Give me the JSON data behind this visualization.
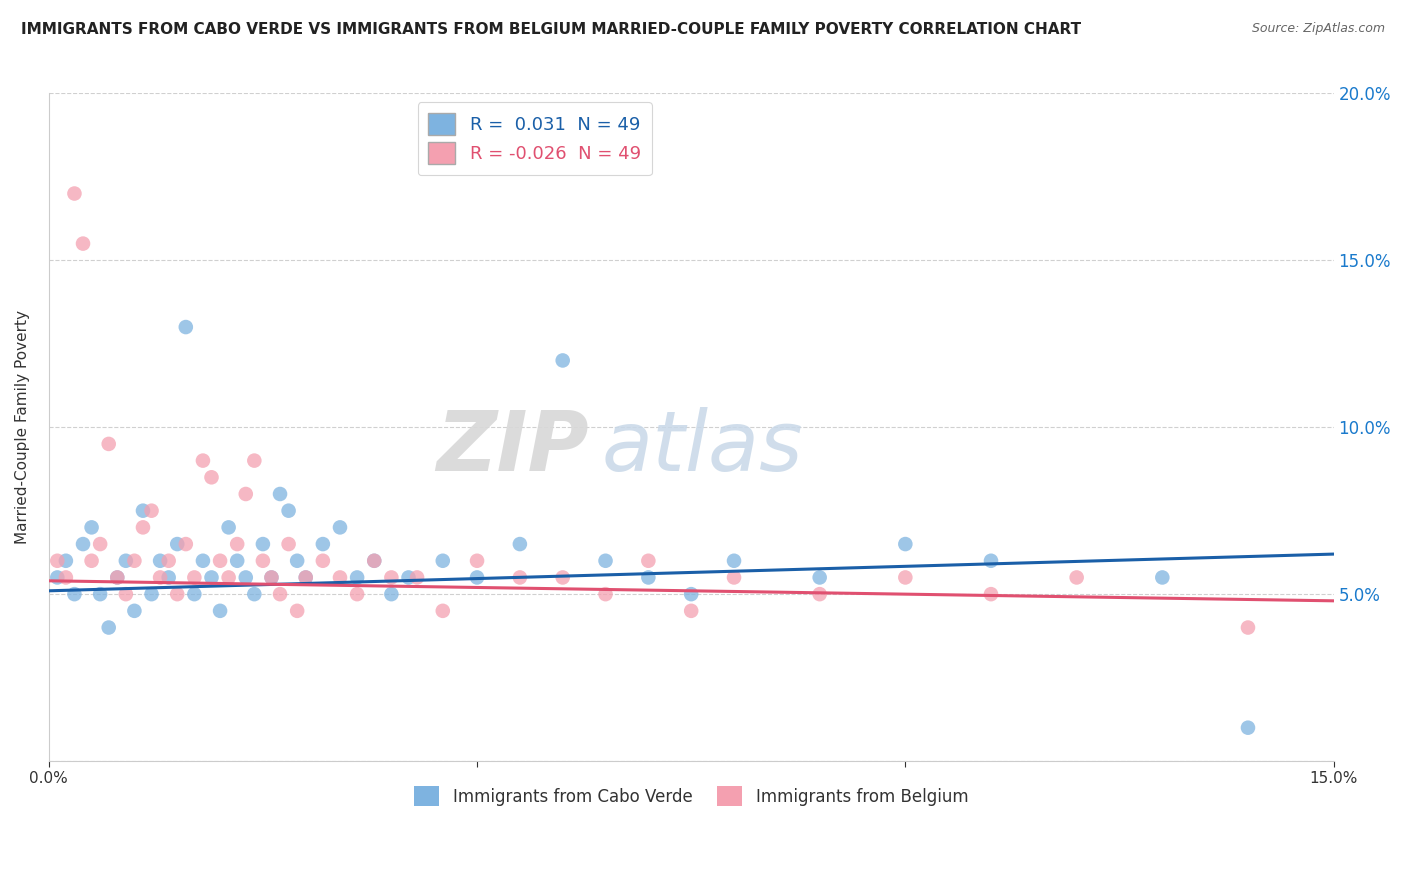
{
  "title": "IMMIGRANTS FROM CABO VERDE VS IMMIGRANTS FROM BELGIUM MARRIED-COUPLE FAMILY POVERTY CORRELATION CHART",
  "source": "Source: ZipAtlas.com",
  "ylabel": "Married-Couple Family Poverty",
  "x_min": 0.0,
  "x_max": 0.15,
  "y_min": 0.0,
  "y_max": 0.2,
  "r_cabo_verde": 0.031,
  "n_cabo_verde": 49,
  "r_belgium": -0.026,
  "n_belgium": 49,
  "color_cabo_verde": "#7eb3e0",
  "color_belgium": "#f4a0b0",
  "line_color_cabo_verde": "#1a5fa8",
  "line_color_belgium": "#e05070",
  "cabo_verde_x": [
    0.001,
    0.002,
    0.003,
    0.004,
    0.005,
    0.006,
    0.007,
    0.008,
    0.009,
    0.01,
    0.011,
    0.012,
    0.013,
    0.014,
    0.015,
    0.016,
    0.017,
    0.018,
    0.019,
    0.02,
    0.021,
    0.022,
    0.023,
    0.024,
    0.025,
    0.026,
    0.027,
    0.028,
    0.029,
    0.03,
    0.032,
    0.034,
    0.036,
    0.038,
    0.04,
    0.042,
    0.046,
    0.05,
    0.055,
    0.06,
    0.065,
    0.07,
    0.075,
    0.08,
    0.09,
    0.1,
    0.11,
    0.13,
    0.14
  ],
  "cabo_verde_y": [
    0.055,
    0.06,
    0.05,
    0.065,
    0.07,
    0.05,
    0.04,
    0.055,
    0.06,
    0.045,
    0.075,
    0.05,
    0.06,
    0.055,
    0.065,
    0.13,
    0.05,
    0.06,
    0.055,
    0.045,
    0.07,
    0.06,
    0.055,
    0.05,
    0.065,
    0.055,
    0.08,
    0.075,
    0.06,
    0.055,
    0.065,
    0.07,
    0.055,
    0.06,
    0.05,
    0.055,
    0.06,
    0.055,
    0.065,
    0.12,
    0.06,
    0.055,
    0.05,
    0.06,
    0.055,
    0.065,
    0.06,
    0.055,
    0.01
  ],
  "belgium_x": [
    0.001,
    0.002,
    0.003,
    0.004,
    0.005,
    0.006,
    0.007,
    0.008,
    0.009,
    0.01,
    0.011,
    0.012,
    0.013,
    0.014,
    0.015,
    0.016,
    0.017,
    0.018,
    0.019,
    0.02,
    0.021,
    0.022,
    0.023,
    0.024,
    0.025,
    0.026,
    0.027,
    0.028,
    0.029,
    0.03,
    0.032,
    0.034,
    0.036,
    0.038,
    0.04,
    0.043,
    0.046,
    0.05,
    0.055,
    0.06,
    0.065,
    0.07,
    0.075,
    0.08,
    0.09,
    0.1,
    0.11,
    0.12,
    0.14
  ],
  "belgium_y": [
    0.06,
    0.055,
    0.17,
    0.155,
    0.06,
    0.065,
    0.095,
    0.055,
    0.05,
    0.06,
    0.07,
    0.075,
    0.055,
    0.06,
    0.05,
    0.065,
    0.055,
    0.09,
    0.085,
    0.06,
    0.055,
    0.065,
    0.08,
    0.09,
    0.06,
    0.055,
    0.05,
    0.065,
    0.045,
    0.055,
    0.06,
    0.055,
    0.05,
    0.06,
    0.055,
    0.055,
    0.045,
    0.06,
    0.055,
    0.055,
    0.05,
    0.06,
    0.045,
    0.055,
    0.05,
    0.055,
    0.05,
    0.055,
    0.04
  ],
  "watermark_zip": "ZIP",
  "watermark_atlas": "atlas",
  "legend_x_cabo": "Immigrants from Cabo Verde",
  "legend_x_belg": "Immigrants from Belgium"
}
